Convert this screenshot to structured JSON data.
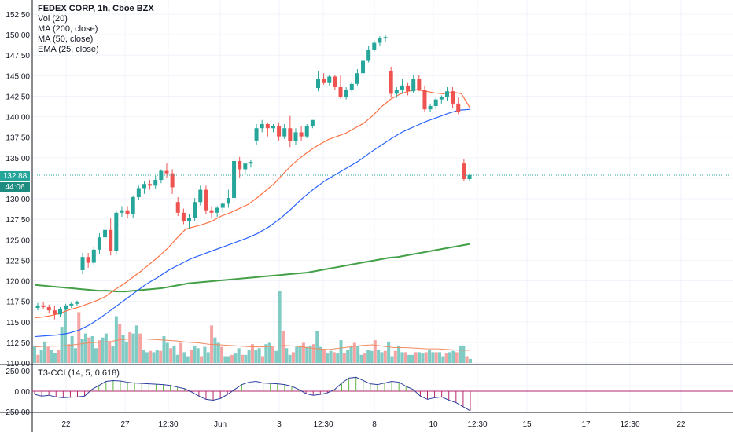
{
  "chart_data": {
    "type": "candlestick",
    "title": "FEDEX CORP, 1h, Cboe BZX",
    "indicators": [
      "Vol (20)",
      "MA (200, close)",
      "MA (50, close)",
      "EMA (25, close)"
    ],
    "oscillator_label": "T3-CCI (14, 5, 0.618)",
    "price_axis": {
      "ylim": [
        110.0,
        152.5
      ],
      "ticks": [
        "152.50",
        "150.00",
        "147.50",
        "145.00",
        "142.50",
        "140.00",
        "137.50",
        "135.00",
        "132.50",
        "130.00",
        "127.50",
        "125.00",
        "122.50",
        "120.00",
        "117.50",
        "115.00",
        "112.50",
        "110.00"
      ]
    },
    "osc_axis": {
      "ylim": [
        -250,
        250
      ],
      "ticks": [
        "250.00",
        "0.00",
        "-250.00"
      ]
    },
    "time_axis": [
      "22",
      "27",
      "12:30",
      "Jun",
      "3",
      "12:30",
      "8",
      "10",
      "12:30",
      "15",
      "17",
      "12:30",
      "22"
    ],
    "last_price": "132.88",
    "countdown": "44:06",
    "candles": [
      [
        116.7,
        117.3,
        116.4,
        117.0
      ],
      [
        117.0,
        117.4,
        116.5,
        116.8
      ],
      [
        116.8,
        117.1,
        116.0,
        116.4
      ],
      [
        116.4,
        116.9,
        115.3,
        115.9
      ],
      [
        115.9,
        116.8,
        115.6,
        116.6
      ],
      [
        116.6,
        117.2,
        116.4,
        117.0
      ],
      [
        117.0,
        117.4,
        116.7,
        117.2
      ],
      [
        117.2,
        117.6,
        116.9,
        117.4
      ],
      [
        121.3,
        123.4,
        120.8,
        122.9
      ],
      [
        122.9,
        123.4,
        121.6,
        122.2
      ],
      [
        122.2,
        124.2,
        122.0,
        123.8
      ],
      [
        123.8,
        125.8,
        123.3,
        125.3
      ],
      [
        125.3,
        126.8,
        124.8,
        126.2
      ],
      [
        126.2,
        127.6,
        123.1,
        123.6
      ],
      [
        123.6,
        128.6,
        123.2,
        128.3
      ],
      [
        128.3,
        129.1,
        127.8,
        128.6
      ],
      [
        128.6,
        129.1,
        127.6,
        128.1
      ],
      [
        128.1,
        130.4,
        127.7,
        130.2
      ],
      [
        130.2,
        131.6,
        129.8,
        131.3
      ],
      [
        131.3,
        132.1,
        130.6,
        131.8
      ],
      [
        131.8,
        132.3,
        131.1,
        131.6
      ],
      [
        131.6,
        132.8,
        131.2,
        132.3
      ],
      [
        132.3,
        133.6,
        131.9,
        133.4
      ],
      [
        133.4,
        134.3,
        132.6,
        133.1
      ],
      [
        133.1,
        133.6,
        130.6,
        131.4
      ],
      [
        129.6,
        130.2,
        127.9,
        128.3
      ],
      [
        128.3,
        128.8,
        126.9,
        127.3
      ],
      [
        127.3,
        128.1,
        126.4,
        127.7
      ],
      [
        127.7,
        130.1,
        127.3,
        129.6
      ],
      [
        129.6,
        131.6,
        129.2,
        131.1
      ],
      [
        131.1,
        131.6,
        128.1,
        128.6
      ],
      [
        128.6,
        129.1,
        127.6,
        128.3
      ],
      [
        128.3,
        129.1,
        127.8,
        128.9
      ],
      [
        128.9,
        129.6,
        128.3,
        129.4
      ],
      [
        129.4,
        131.1,
        128.9,
        130.1
      ],
      [
        130.1,
        135.1,
        129.6,
        134.6
      ],
      [
        134.6,
        135.1,
        132.6,
        133.6
      ],
      [
        133.6,
        134.1,
        132.9,
        134.3
      ],
      [
        134.3,
        134.7,
        133.8,
        134.5
      ],
      [
        137.1,
        139.1,
        136.6,
        138.6
      ],
      [
        138.6,
        139.6,
        138.1,
        139.1
      ],
      [
        139.1,
        139.3,
        137.6,
        138.6
      ],
      [
        138.6,
        139.1,
        138.1,
        138.9
      ],
      [
        138.9,
        139.3,
        137.1,
        137.6
      ],
      [
        137.6,
        139.1,
        137.3,
        138.6
      ],
      [
        138.6,
        140.1,
        136.3,
        137.0
      ],
      [
        137.0,
        138.6,
        136.6,
        138.1
      ],
      [
        138.1,
        138.9,
        137.1,
        137.6
      ],
      [
        137.6,
        139.1,
        137.4,
        138.9
      ],
      [
        138.9,
        139.6,
        138.6,
        139.6
      ],
      [
        143.5,
        145.6,
        143.1,
        144.6
      ],
      [
        144.6,
        145.3,
        143.9,
        144.1
      ],
      [
        144.1,
        145.1,
        143.8,
        144.9
      ],
      [
        144.9,
        145.1,
        143.3,
        143.6
      ],
      [
        143.6,
        145.1,
        142.2,
        142.4
      ],
      [
        142.4,
        143.6,
        142.1,
        143.3
      ],
      [
        143.3,
        144.3,
        143.0,
        144.0
      ],
      [
        144.0,
        145.8,
        143.8,
        145.3
      ],
      [
        145.3,
        147.1,
        145.1,
        146.8
      ],
      [
        146.8,
        148.6,
        146.6,
        148.1
      ],
      [
        148.1,
        149.3,
        147.9,
        149.0
      ],
      [
        149.0,
        149.8,
        148.6,
        149.6
      ],
      [
        149.6,
        150.0,
        149.1,
        149.7
      ],
      [
        145.6,
        146.1,
        142.3,
        142.8
      ],
      [
        142.8,
        143.6,
        142.3,
        143.3
      ],
      [
        143.3,
        144.6,
        142.8,
        143.8
      ],
      [
        143.8,
        144.1,
        142.6,
        143.1
      ],
      [
        143.1,
        145.1,
        142.9,
        144.6
      ],
      [
        144.6,
        145.1,
        143.1,
        143.3
      ],
      [
        143.3,
        143.8,
        140.6,
        140.9
      ],
      [
        140.9,
        141.6,
        140.6,
        141.3
      ],
      [
        141.3,
        142.3,
        140.9,
        142.1
      ],
      [
        142.1,
        142.6,
        141.6,
        142.4
      ],
      [
        142.4,
        143.6,
        141.9,
        143.1
      ],
      [
        143.1,
        143.6,
        141.1,
        141.6
      ],
      [
        141.6,
        142.3,
        140.3,
        140.6
      ],
      [
        134.3,
        134.8,
        132.1,
        132.4
      ],
      [
        132.4,
        133.1,
        132.2,
        132.9
      ]
    ],
    "ma200": [
      119.5,
      119.4,
      119.3,
      119.2,
      119.1,
      119.0,
      118.9,
      118.8,
      118.8,
      118.7,
      118.7,
      118.8,
      118.9,
      119.0,
      119.1,
      119.3,
      119.5,
      119.7,
      119.8,
      119.9,
      120.0,
      120.1,
      120.2,
      120.3,
      120.4,
      120.5,
      120.6,
      120.7,
      120.8,
      120.9,
      121.0,
      121.2,
      121.4,
      121.6,
      121.8,
      122.0,
      122.2,
      122.4,
      122.6,
      122.8,
      122.9,
      123.1,
      123.3,
      123.5,
      123.7,
      123.9,
      124.1,
      124.3,
      124.5
    ],
    "ma50": [
      113.2,
      113.3,
      113.4,
      113.6,
      114.0,
      114.7,
      115.6,
      116.6,
      117.6,
      118.6,
      119.6,
      120.4,
      121.3,
      122.0,
      122.7,
      123.2,
      123.7,
      124.2,
      124.7,
      125.2,
      125.8,
      126.6,
      127.6,
      128.8,
      130.1,
      131.2,
      132.2,
      133.0,
      133.8,
      134.6,
      135.6,
      136.5,
      137.4,
      138.2,
      138.8,
      139.4,
      139.9,
      140.4,
      140.8,
      140.9
    ],
    "ema25": [
      115.5,
      115.6,
      115.8,
      116.1,
      116.5,
      116.8,
      117.2,
      117.6,
      118.1,
      118.9,
      119.6,
      120.4,
      121.2,
      122.1,
      123.0,
      124.0,
      125.2,
      126.3,
      126.6,
      126.9,
      127.3,
      127.9,
      128.3,
      128.8,
      129.3,
      130.1,
      131.0,
      131.9,
      133.1,
      134.2,
      135.1,
      135.9,
      136.6,
      137.2,
      137.6,
      138.0,
      138.6,
      139.2,
      140.1,
      141.2,
      142.1,
      142.7,
      143.1,
      143.3,
      143.1,
      142.9,
      142.8,
      143.0,
      142.8,
      141.0
    ],
    "volume": [
      2.6,
      1.2,
      2.0,
      3.2,
      2.4,
      2.0,
      1.5,
      2.0,
      5.4,
      8.2,
      2.8,
      4.0,
      2.2,
      7.6,
      3.6,
      4.4,
      3.8,
      4.0,
      2.2,
      3.4,
      3.8,
      4.4,
      3.2,
      2.5,
      7.0,
      5.8,
      4.2,
      3.2,
      4.6,
      4.4,
      5.6,
      4.4,
      2.0,
      1.6,
      1.8,
      1.6,
      2.0,
      1.8,
      4.0,
      3.0,
      2.2,
      2.6,
      1.2,
      3.0,
      1.6,
      1.0,
      2.0,
      2.6,
      2.2,
      1.0,
      2.4,
      1.6,
      5.6,
      3.8,
      3.0,
      2.4,
      1.0,
      1.0,
      1.2,
      1.4,
      2.2,
      1.2,
      1.2,
      2.0,
      2.8,
      2.0,
      2.2,
      1.0,
      2.8,
      3.0,
      2.4,
      1.8,
      10.8,
      4.8,
      2.2,
      1.2,
      1.6,
      2.4,
      2.6,
      3.0,
      2.4,
      2.6,
      2.8,
      4.8,
      2.4,
      2.0,
      1.4,
      1.8,
      1.6,
      1.4,
      3.4,
      1.4,
      2.0,
      2.4,
      3.0,
      2.6,
      1.2,
      1.4,
      2.0,
      1.8,
      3.4,
      2.0,
      1.6,
      1.8,
      3.2,
      1.0,
      1.8,
      2.6,
      1.6,
      1.6,
      1.2,
      1.2,
      1.6,
      1.6,
      1.4,
      1.6,
      2.0,
      1.6,
      1.6,
      1.6,
      1.0,
      1.4,
      1.6,
      1.8,
      1.6,
      2.6,
      2.6,
      1.0,
      0.6
    ],
    "volume_ma": [
      2.4,
      2.5,
      2.5,
      2.6,
      2.8,
      3.0,
      3.1,
      3.2,
      3.5,
      3.6,
      3.6,
      3.5,
      3.4,
      3.3,
      3.1,
      3.0,
      2.8,
      2.7,
      2.6,
      2.5,
      2.4,
      2.4,
      2.5,
      2.6,
      2.5,
      2.3,
      2.1,
      2.0,
      2.2,
      2.4,
      2.6,
      2.7,
      2.5,
      2.3,
      2.3,
      2.2,
      2.1,
      2.1,
      2.0,
      1.9,
      1.9
    ],
    "cci": [
      -40,
      -60,
      -50,
      -70,
      -80,
      -75,
      -70,
      -60,
      20,
      70,
      120,
      130,
      125,
      110,
      100,
      95,
      90,
      85,
      80,
      70,
      50,
      30,
      -10,
      -60,
      -100,
      -110,
      -90,
      -40,
      20,
      80,
      110,
      120,
      100,
      95,
      90,
      80,
      60,
      20,
      -30,
      -50,
      -40,
      -20,
      20,
      100,
      160,
      170,
      130,
      90,
      80,
      100,
      120,
      110,
      60,
      20,
      -60,
      -100,
      -80,
      -70,
      -110,
      -140,
      -190,
      -240
    ]
  },
  "colors": {
    "up": "#26a69a",
    "down": "#ef5350",
    "ma200": "#43a047",
    "ma50": "#2962ff",
    "ema25": "#ff7043",
    "last_price": "#26a69a",
    "volume_up": "#80cbc4",
    "volume_down": "#f4a5a3",
    "osc_line": "#2c3e9f",
    "osc_up": "#5fb33f",
    "osc_down": "#b5246e"
  }
}
